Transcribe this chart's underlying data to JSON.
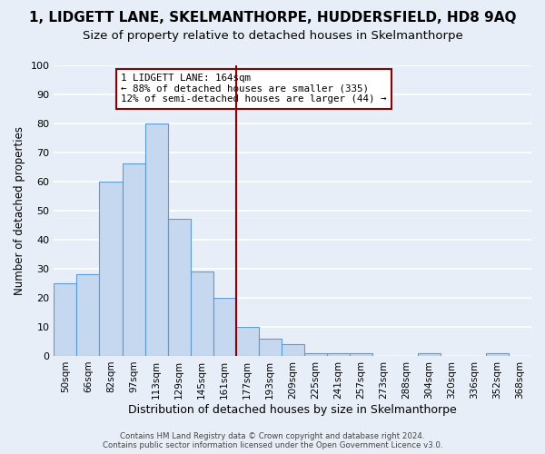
{
  "title": "1, LIDGETT LANE, SKELMANTHORPE, HUDDERSFIELD, HD8 9AQ",
  "subtitle": "Size of property relative to detached houses in Skelmanthorpe",
  "xlabel": "Distribution of detached houses by size in Skelmanthorpe",
  "ylabel": "Number of detached properties",
  "bin_labels": [
    "50sqm",
    "66sqm",
    "82sqm",
    "97sqm",
    "113sqm",
    "129sqm",
    "145sqm",
    "161sqm",
    "177sqm",
    "193sqm",
    "209sqm",
    "225sqm",
    "241sqm",
    "257sqm",
    "273sqm",
    "288sqm",
    "304sqm",
    "320sqm",
    "336sqm",
    "352sqm",
    "368sqm"
  ],
  "bar_values": [
    25,
    28,
    60,
    66,
    80,
    47,
    29,
    20,
    10,
    6,
    4,
    1,
    1,
    1,
    0,
    0,
    1,
    0,
    0,
    1,
    0
  ],
  "bar_color": "#c5d8f0",
  "bar_edge_color": "#5b9bd5",
  "vline_color": "#8b0000",
  "vline_pos": 7.5,
  "annotation_text": "1 LIDGETT LANE: 164sqm\n← 88% of detached houses are smaller (335)\n12% of semi-detached houses are larger (44) →",
  "annotation_box_color": "#8b0000",
  "ylim": [
    0,
    100
  ],
  "yticks": [
    0,
    10,
    20,
    30,
    40,
    50,
    60,
    70,
    80,
    90,
    100
  ],
  "footer_line1": "Contains HM Land Registry data © Crown copyright and database right 2024.",
  "footer_line2": "Contains public sector information licensed under the Open Government Licence v3.0.",
  "bg_color": "#e8eef8",
  "plot_bg_color": "#e8eef8",
  "grid_color": "#ffffff",
  "title_fontsize": 11,
  "subtitle_fontsize": 9.5
}
